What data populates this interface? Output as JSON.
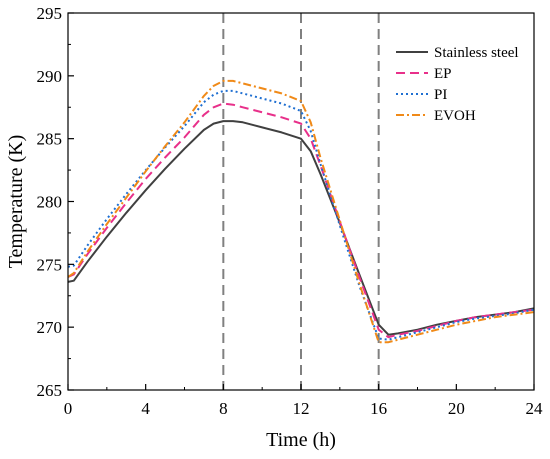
{
  "chart_data": {
    "type": "line",
    "title": "",
    "xlabel": "Time (h)",
    "ylabel": "Temperature (K)",
    "xlim": [
      0,
      24
    ],
    "ylim": [
      265,
      295
    ],
    "xticks": [
      0,
      4,
      8,
      12,
      16,
      20,
      24
    ],
    "yticks": [
      265,
      270,
      275,
      280,
      285,
      290,
      295
    ],
    "grid": false,
    "legend_position": "top-right",
    "reference_lines": {
      "x": [
        8,
        12,
        16
      ],
      "style": "dashed",
      "color": "#808080"
    },
    "series": [
      {
        "name": "Stainless steel",
        "color": "#404040",
        "dash": "solid",
        "x": [
          0,
          0.3,
          1,
          2,
          3,
          4,
          5,
          6,
          7,
          7.5,
          8,
          8.5,
          9,
          10,
          11,
          12,
          12.5,
          13,
          14,
          15,
          16,
          16.5,
          17,
          18,
          19,
          20,
          21,
          22,
          23,
          24
        ],
        "y": [
          273.6,
          273.7,
          275.2,
          277.2,
          279.1,
          280.9,
          282.6,
          284.2,
          285.7,
          286.2,
          286.4,
          286.4,
          286.3,
          285.9,
          285.5,
          285.0,
          284.0,
          282.2,
          278.3,
          274.2,
          270.2,
          269.4,
          269.5,
          269.8,
          270.2,
          270.5,
          270.8,
          271.0,
          271.2,
          271.5
        ]
      },
      {
        "name": "EP",
        "color": "#e8308a",
        "dash": "dashed",
        "x": [
          0,
          0.3,
          1,
          2,
          3,
          4,
          5,
          6,
          7,
          7.5,
          8,
          8.5,
          9,
          10,
          11,
          12,
          12.5,
          13,
          14,
          15,
          16,
          16.5,
          17,
          18,
          19,
          20,
          21,
          22,
          23,
          24
        ],
        "y": [
          274.0,
          274.2,
          275.8,
          277.9,
          279.9,
          281.8,
          283.5,
          285.1,
          286.9,
          287.5,
          287.8,
          287.7,
          287.5,
          287.1,
          286.7,
          286.2,
          285.0,
          282.9,
          278.4,
          274.0,
          269.8,
          269.2,
          269.4,
          269.7,
          270.1,
          270.5,
          270.8,
          271.0,
          271.2,
          271.4
        ]
      },
      {
        "name": "PI",
        "color": "#1f6fd1",
        "dash": "dotted",
        "x": [
          0,
          0.3,
          1,
          2,
          3,
          4,
          5,
          6,
          7,
          7.5,
          8,
          8.5,
          9,
          10,
          11,
          12,
          12.5,
          13,
          14,
          15,
          16,
          16.5,
          17,
          18,
          19,
          20,
          21,
          22,
          23,
          24
        ],
        "y": [
          274.8,
          274.9,
          276.5,
          278.6,
          280.6,
          282.5,
          284.3,
          286.0,
          287.9,
          288.5,
          288.8,
          288.8,
          288.6,
          288.2,
          287.8,
          287.2,
          285.6,
          283.0,
          278.1,
          273.3,
          269.1,
          269.0,
          269.2,
          269.6,
          270.0,
          270.4,
          270.7,
          270.9,
          271.1,
          271.4
        ]
      },
      {
        "name": "EVOH",
        "color": "#f08a18",
        "dash": "dashdot",
        "x": [
          0,
          0.3,
          1,
          2,
          3,
          4,
          5,
          6,
          7,
          7.5,
          8,
          8.5,
          9,
          10,
          11,
          12,
          12.5,
          13,
          14,
          15,
          16,
          16.5,
          17,
          18,
          19,
          20,
          21,
          22,
          23,
          24
        ],
        "y": [
          274.0,
          274.3,
          276.0,
          278.2,
          280.3,
          282.4,
          284.4,
          286.3,
          288.4,
          289.2,
          289.6,
          289.6,
          289.4,
          289.0,
          288.6,
          288.0,
          286.3,
          283.5,
          278.5,
          273.5,
          268.8,
          268.8,
          269.0,
          269.4,
          269.8,
          270.2,
          270.5,
          270.8,
          271.0,
          271.2
        ]
      }
    ]
  }
}
